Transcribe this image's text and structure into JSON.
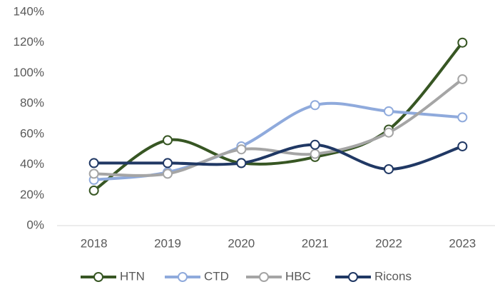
{
  "chart_data": {
    "type": "line",
    "smooth": true,
    "categories": [
      "2018",
      "2019",
      "2020",
      "2021",
      "2022",
      "2023"
    ],
    "series": [
      {
        "name": "HTN",
        "color": "#375623",
        "values": [
          23,
          56,
          41,
          45,
          63,
          120
        ]
      },
      {
        "name": "CTD",
        "color": "#8faadc",
        "values": [
          30,
          35,
          52,
          79,
          75,
          71
        ]
      },
      {
        "name": "HBC",
        "color": "#a5a5a5",
        "values": [
          34,
          34,
          50,
          47,
          61,
          96
        ]
      },
      {
        "name": "Ricons",
        "color": "#203864",
        "values": [
          41,
          41,
          41,
          53,
          37,
          52
        ]
      }
    ],
    "ylim": [
      0,
      140
    ],
    "yticks": [
      {
        "value": 0,
        "label": "0%"
      },
      {
        "value": 20,
        "label": "20%"
      },
      {
        "value": 40,
        "label": "40%"
      },
      {
        "value": 60,
        "label": "60%"
      },
      {
        "value": 80,
        "label": "80%"
      },
      {
        "value": 100,
        "label": "100%"
      },
      {
        "value": 120,
        "label": "120%"
      },
      {
        "value": 140,
        "label": "140%"
      }
    ],
    "grid": false,
    "legend": "bottom"
  }
}
